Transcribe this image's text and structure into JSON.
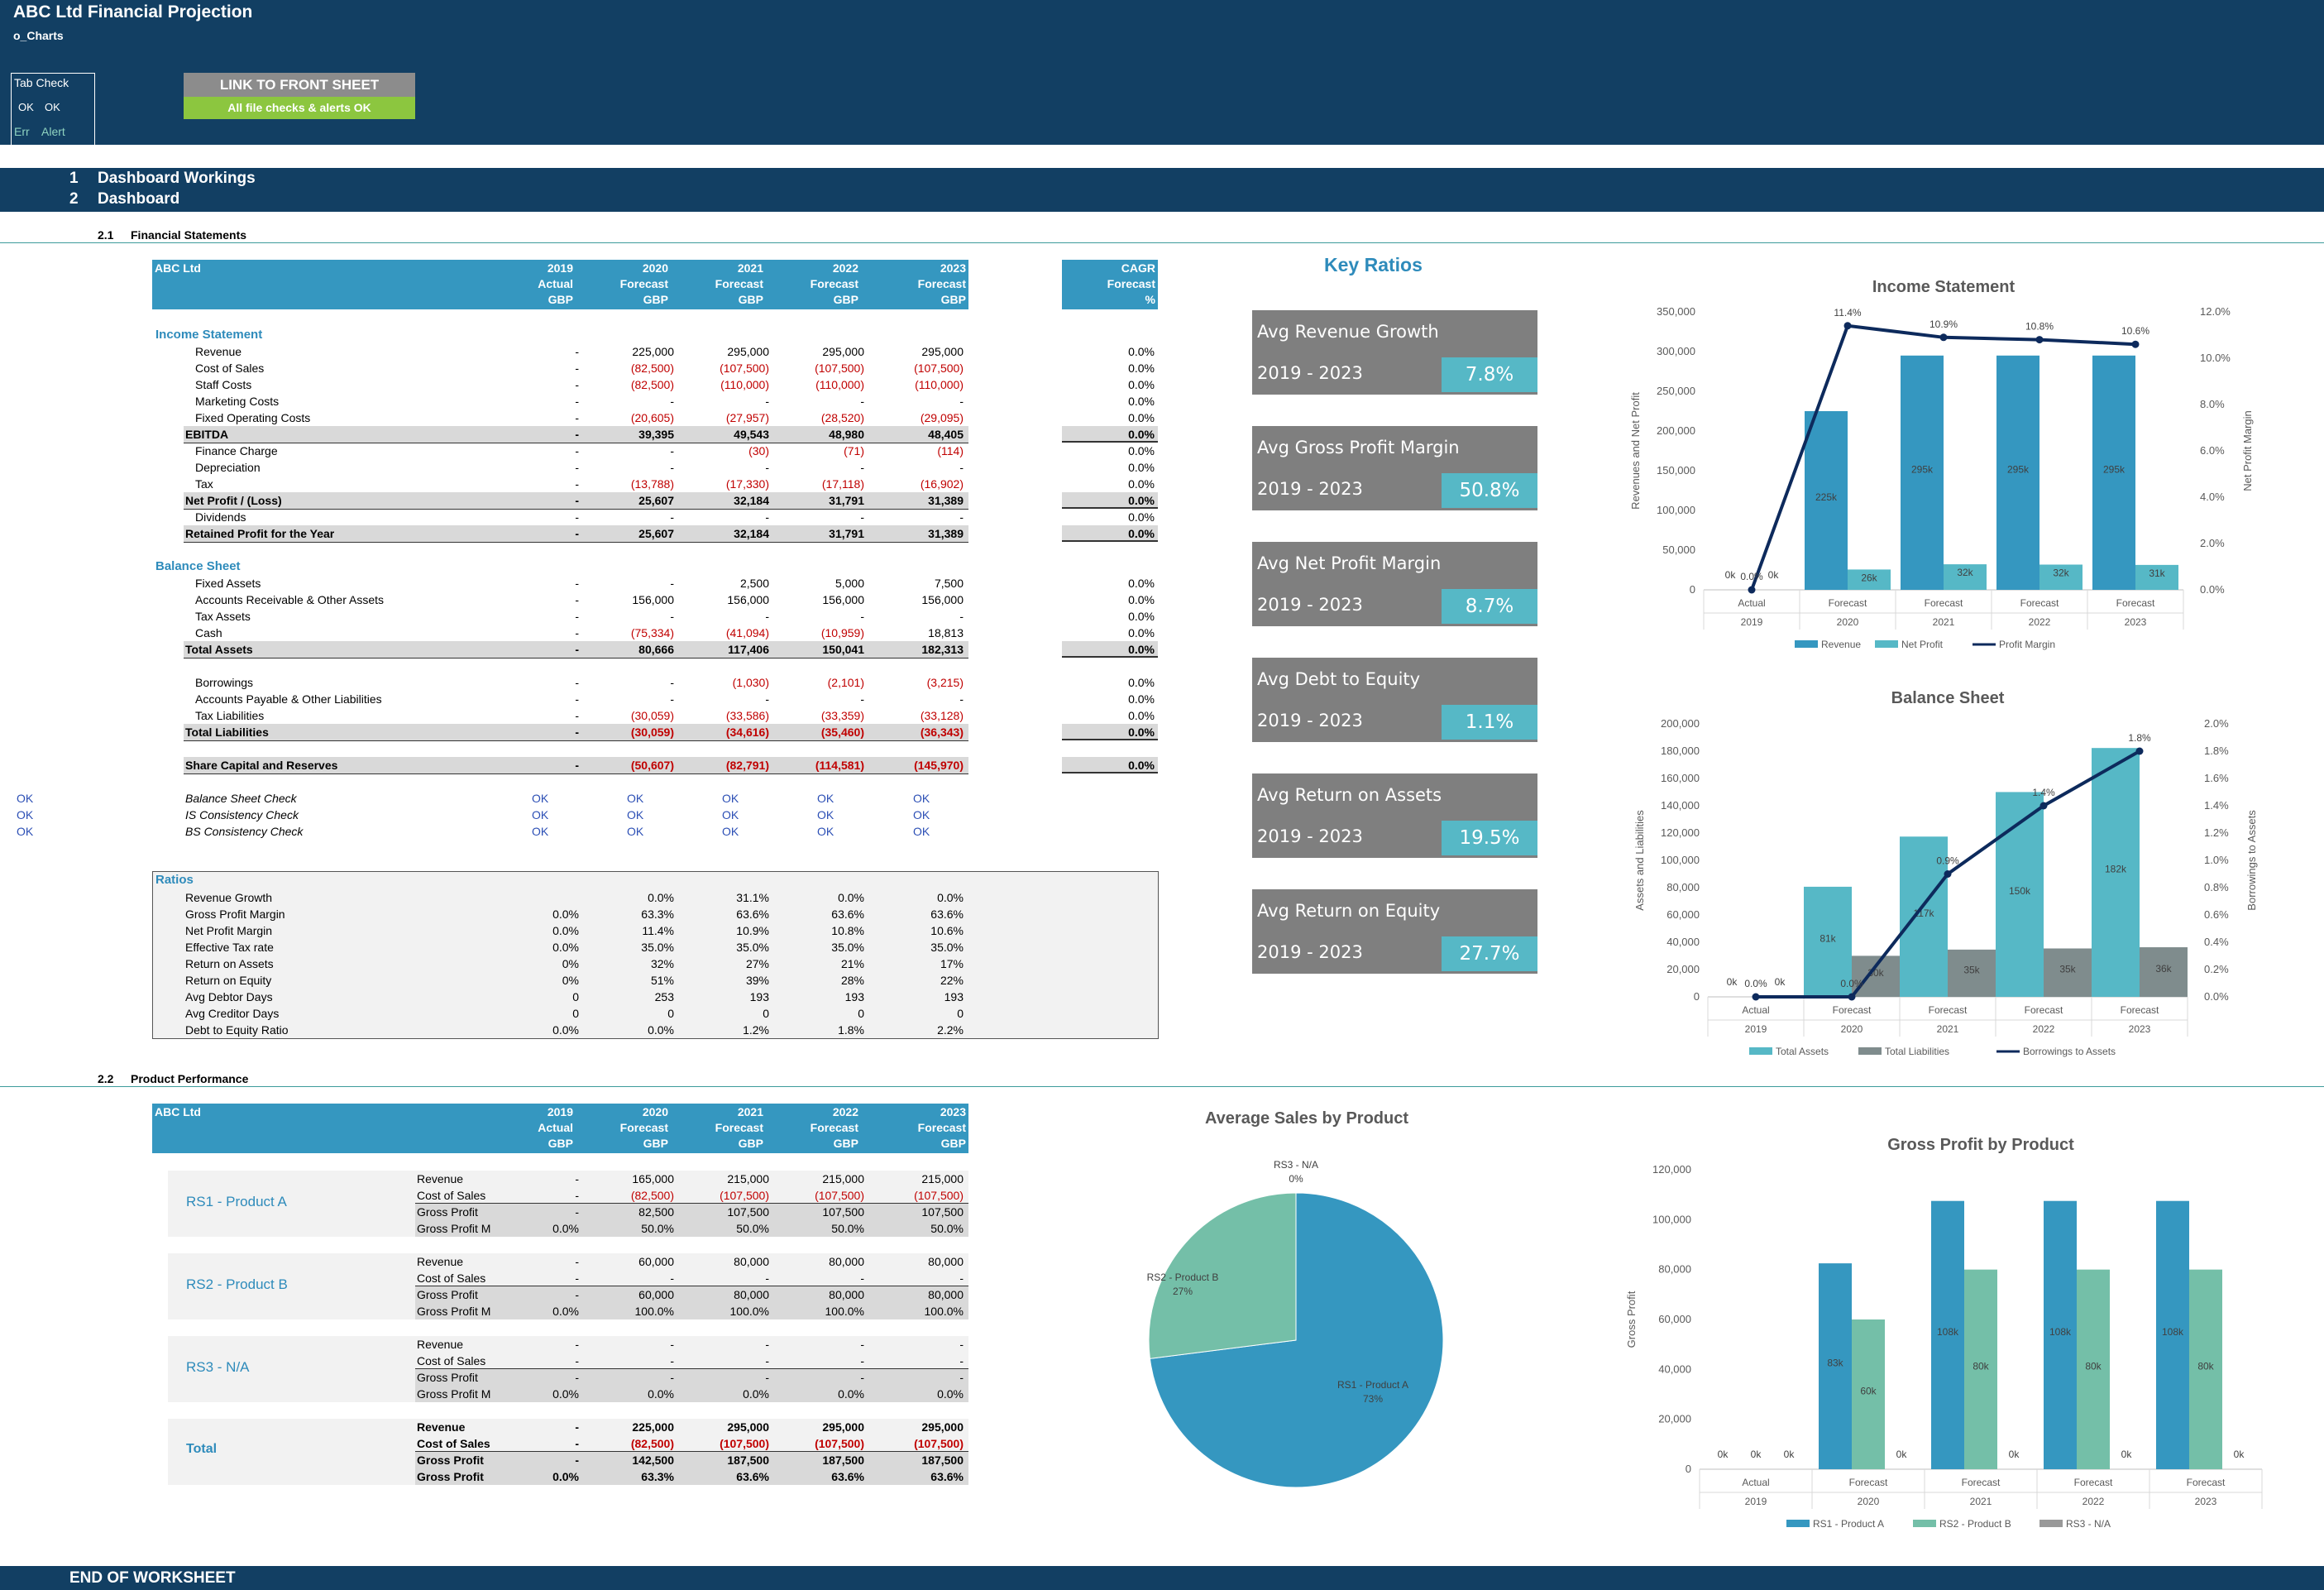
{
  "header": {
    "title": "ABC Ltd Financial Projection",
    "sheet": "o_Charts",
    "tab_check_label": "Tab Check",
    "ok1": "OK",
    "ok2": "OK",
    "err": "Err",
    "alert": "Alert",
    "link_button": "LINK TO FRONT SHEET",
    "checks_status": "All file checks & alerts OK"
  },
  "outline": {
    "s1_num": "1",
    "s1_label": "Dashboard Workings",
    "s2_num": "2",
    "s2_label": "Dashboard",
    "s21_num": "2.1",
    "s21_label": "Financial Statements",
    "s22_num": "2.2",
    "s22_label": "Product Performance",
    "end": "END OF WORKSHEET"
  },
  "fs_header": {
    "company": "ABC Ltd",
    "years": [
      "2019",
      "2020",
      "2021",
      "2022",
      "2023"
    ],
    "types": [
      "Actual",
      "Forecast",
      "Forecast",
      "Forecast",
      "Forecast"
    ],
    "units": [
      "GBP",
      "GBP",
      "GBP",
      "GBP",
      "GBP"
    ],
    "cagr": "CAGR",
    "cagr_type": "Forecast",
    "cagr_unit": "%"
  },
  "income": {
    "title": "Income Statement",
    "rows": [
      {
        "label": "Revenue",
        "v": [
          "-",
          "225,000",
          "295,000",
          "295,000",
          "295,000"
        ],
        "cagr": "0.0%"
      },
      {
        "label": "Cost of Sales",
        "v": [
          "-",
          "(82,500)",
          "(107,500)",
          "(107,500)",
          "(107,500)"
        ],
        "cagr": "0.0%"
      },
      {
        "label": "Staff Costs",
        "v": [
          "-",
          "(82,500)",
          "(110,000)",
          "(110,000)",
          "(110,000)"
        ],
        "cagr": "0.0%"
      },
      {
        "label": "Marketing Costs",
        "v": [
          "-",
          "-",
          "-",
          "-",
          "-"
        ],
        "cagr": "0.0%"
      },
      {
        "label": "Fixed Operating Costs",
        "v": [
          "-",
          "(20,605)",
          "(27,957)",
          "(28,520)",
          "(29,095)"
        ],
        "cagr": "0.0%"
      },
      {
        "label": "EBITDA",
        "v": [
          "-",
          "39,395",
          "49,543",
          "48,980",
          "48,405"
        ],
        "cagr": "0.0%"
      },
      {
        "label": "Finance Charge",
        "v": [
          "-",
          "-",
          "(30)",
          "(71)",
          "(114)"
        ],
        "cagr": "0.0%"
      },
      {
        "label": "Depreciation",
        "v": [
          "-",
          "-",
          "-",
          "-",
          "-"
        ],
        "cagr": "0.0%"
      },
      {
        "label": "Tax",
        "v": [
          "-",
          "(13,788)",
          "(17,330)",
          "(17,118)",
          "(16,902)"
        ],
        "cagr": "0.0%"
      },
      {
        "label": "Net Profit / (Loss)",
        "v": [
          "-",
          "25,607",
          "32,184",
          "31,791",
          "31,389"
        ],
        "cagr": "0.0%"
      },
      {
        "label": "Dividends",
        "v": [
          "-",
          "-",
          "-",
          "-",
          "-"
        ],
        "cagr": "0.0%"
      },
      {
        "label": "Retained Profit for the Year",
        "v": [
          "-",
          "25,607",
          "32,184",
          "31,791",
          "31,389"
        ],
        "cagr": "0.0%"
      }
    ]
  },
  "balance": {
    "title": "Balance Sheet",
    "rows": [
      {
        "label": "Fixed Assets",
        "v": [
          "-",
          "-",
          "2,500",
          "5,000",
          "7,500"
        ],
        "cagr": "0.0%"
      },
      {
        "label": "Accounts Receivable & Other Assets",
        "v": [
          "-",
          "156,000",
          "156,000",
          "156,000",
          "156,000"
        ],
        "cagr": "0.0%"
      },
      {
        "label": "Tax Assets",
        "v": [
          "-",
          "-",
          "-",
          "-",
          "-"
        ],
        "cagr": "0.0%"
      },
      {
        "label": "Cash",
        "v": [
          "-",
          "(75,334)",
          "(41,094)",
          "(10,959)",
          "18,813"
        ],
        "cagr": "0.0%"
      },
      {
        "label": "Total Assets",
        "v": [
          "-",
          "80,666",
          "117,406",
          "150,041",
          "182,313"
        ],
        "cagr": "0.0%"
      },
      {
        "label": "Borrowings",
        "v": [
          "-",
          "-",
          "(1,030)",
          "(2,101)",
          "(3,215)"
        ],
        "cagr": "0.0%"
      },
      {
        "label": "Accounts Payable & Other Liabilities",
        "v": [
          "-",
          "-",
          "-",
          "-",
          "-"
        ],
        "cagr": "0.0%"
      },
      {
        "label": "Tax Liabilities",
        "v": [
          "-",
          "(30,059)",
          "(33,586)",
          "(33,359)",
          "(33,128)"
        ],
        "cagr": "0.0%"
      },
      {
        "label": "Total Liabilities",
        "v": [
          "-",
          "(30,059)",
          "(34,616)",
          "(35,460)",
          "(36,343)"
        ],
        "cagr": "0.0%"
      },
      {
        "label": "Share Capital and Reserves",
        "v": [
          "-",
          "(50,607)",
          "(82,791)",
          "(114,581)",
          "(145,970)"
        ],
        "cagr": "0.0%"
      }
    ]
  },
  "checks": [
    {
      "left": "OK",
      "label": "Balance Sheet Check",
      "v": [
        "OK",
        "OK",
        "OK",
        "OK",
        "OK"
      ]
    },
    {
      "left": "OK",
      "label": "IS Consistency Check",
      "v": [
        "OK",
        "OK",
        "OK",
        "OK",
        "OK"
      ]
    },
    {
      "left": "OK",
      "label": "BS Consistency Check",
      "v": [
        "OK",
        "OK",
        "OK",
        "OK",
        "OK"
      ]
    }
  ],
  "ratios": {
    "title": "Ratios",
    "rows": [
      {
        "label": "Revenue Growth",
        "v": [
          "",
          "0.0%",
          "31.1%",
          "0.0%",
          "0.0%"
        ]
      },
      {
        "label": "Gross Profit Margin",
        "v": [
          "0.0%",
          "63.3%",
          "63.6%",
          "63.6%",
          "63.6%"
        ]
      },
      {
        "label": "Net Profit Margin",
        "v": [
          "0.0%",
          "11.4%",
          "10.9%",
          "10.8%",
          "10.6%"
        ]
      },
      {
        "label": "Effective Tax rate",
        "v": [
          "0.0%",
          "35.0%",
          "35.0%",
          "35.0%",
          "35.0%"
        ]
      },
      {
        "label": "Return on Assets",
        "v": [
          "0%",
          "32%",
          "27%",
          "21%",
          "17%"
        ]
      },
      {
        "label": "Return on Equity",
        "v": [
          "0%",
          "51%",
          "39%",
          "28%",
          "22%"
        ]
      },
      {
        "label": "Avg Debtor Days",
        "v": [
          "0",
          "253",
          "193",
          "193",
          "193"
        ]
      },
      {
        "label": "Avg Creditor Days",
        "v": [
          "0",
          "0",
          "0",
          "0",
          "0"
        ]
      },
      {
        "label": "Debt to Equity Ratio",
        "v": [
          "0.0%",
          "0.0%",
          "1.2%",
          "1.8%",
          "2.2%"
        ]
      }
    ]
  },
  "key_ratios": {
    "title": "Key Ratios",
    "items": [
      {
        "label": "Avg Revenue Growth",
        "period": "2019 - 2023",
        "value": "7.8%"
      },
      {
        "label": "Avg Gross Profit Margin",
        "period": "2019 - 2023",
        "value": "50.8%"
      },
      {
        "label": "Avg Net Profit Margin",
        "period": "2019 - 2023",
        "value": "8.7%"
      },
      {
        "label": "Avg Debt to Equity",
        "period": "2019 - 2023",
        "value": "1.1%"
      },
      {
        "label": "Avg Return on Assets",
        "period": "2019 - 2023",
        "value": "19.5%"
      },
      {
        "label": "Avg Return on Equity",
        "period": "2019 - 2023",
        "value": "27.7%"
      }
    ]
  },
  "products": [
    {
      "name": "RS1 - Product A",
      "rows": [
        {
          "label": "Revenue",
          "v": [
            "-",
            "165,000",
            "215,000",
            "215,000",
            "215,000"
          ]
        },
        {
          "label": "Cost of Sales",
          "v": [
            "-",
            "(82,500)",
            "(107,500)",
            "(107,500)",
            "(107,500)"
          ]
        },
        {
          "label": "Gross Profit",
          "v": [
            "-",
            "82,500",
            "107,500",
            "107,500",
            "107,500"
          ]
        },
        {
          "label": "Gross Profit M",
          "v": [
            "0.0%",
            "50.0%",
            "50.0%",
            "50.0%",
            "50.0%"
          ]
        }
      ]
    },
    {
      "name": "RS2 - Product B",
      "rows": [
        {
          "label": "Revenue",
          "v": [
            "-",
            "60,000",
            "80,000",
            "80,000",
            "80,000"
          ]
        },
        {
          "label": "Cost of Sales",
          "v": [
            "-",
            "-",
            "-",
            "-",
            "-"
          ]
        },
        {
          "label": "Gross Profit",
          "v": [
            "-",
            "60,000",
            "80,000",
            "80,000",
            "80,000"
          ]
        },
        {
          "label": "Gross Profit M",
          "v": [
            "0.0%",
            "100.0%",
            "100.0%",
            "100.0%",
            "100.0%"
          ]
        }
      ]
    },
    {
      "name": "RS3 - N/A",
      "rows": [
        {
          "label": "Revenue",
          "v": [
            "-",
            "-",
            "-",
            "-",
            "-"
          ]
        },
        {
          "label": "Cost of Sales",
          "v": [
            "-",
            "-",
            "-",
            "-",
            "-"
          ]
        },
        {
          "label": "Gross Profit",
          "v": [
            "-",
            "-",
            "-",
            "-",
            "-"
          ]
        },
        {
          "label": "Gross Profit M",
          "v": [
            "0.0%",
            "0.0%",
            "0.0%",
            "0.0%",
            "0.0%"
          ]
        }
      ]
    },
    {
      "name": "Total",
      "rows": [
        {
          "label": "Revenue",
          "v": [
            "-",
            "225,000",
            "295,000",
            "295,000",
            "295,000"
          ]
        },
        {
          "label": "Cost of Sales",
          "v": [
            "-",
            "(82,500)",
            "(107,500)",
            "(107,500)",
            "(107,500)"
          ]
        },
        {
          "label": "Gross Profit",
          "v": [
            "-",
            "142,500",
            "187,500",
            "187,500",
            "187,500"
          ]
        },
        {
          "label": "Gross Profit",
          "v": [
            "0.0%",
            "63.3%",
            "63.6%",
            "63.6%",
            "63.6%"
          ]
        }
      ]
    }
  ],
  "chart_data": [
    {
      "type": "bar",
      "title": "Income Statement",
      "ylabel": "Revenues and Net Profit",
      "y2label": "Net Profit Margin",
      "categories": [
        "Actual 2019",
        "Forecast 2020",
        "Forecast 2021",
        "Forecast 2022",
        "Forecast 2023"
      ],
      "cat_top": [
        "Actual",
        "Forecast",
        "Forecast",
        "Forecast",
        "Forecast"
      ],
      "cat_bottom": [
        "2019",
        "2020",
        "2021",
        "2022",
        "2023"
      ],
      "ylim": [
        0,
        350000
      ],
      "yticks": [
        "0",
        "50,000",
        "100,000",
        "150,000",
        "200,000",
        "250,000",
        "300,000",
        "350,000"
      ],
      "y2lim": [
        0,
        12
      ],
      "y2ticks": [
        "0.0%",
        "2.0%",
        "4.0%",
        "6.0%",
        "8.0%",
        "10.0%",
        "12.0%"
      ],
      "series": [
        {
          "name": "Revenue",
          "values": [
            0,
            225000,
            295000,
            295000,
            295000
          ],
          "labels": [
            "0k",
            "225k",
            "295k",
            "295k",
            "295k"
          ],
          "color": "#3597c0"
        },
        {
          "name": "Net Profit",
          "values": [
            0,
            25607,
            32184,
            31791,
            31389
          ],
          "labels": [
            "0k",
            "26k",
            "32k",
            "32k",
            "31k"
          ],
          "color": "#56b8c6"
        },
        {
          "name": "Profit Margin",
          "type": "line",
          "axis": "right",
          "values": [
            0,
            11.4,
            10.9,
            10.8,
            10.6
          ],
          "labels": [
            "0.0%",
            "11.4%",
            "10.9%",
            "10.8%",
            "10.6%"
          ],
          "color": "#0d2a5c"
        }
      ],
      "legend": "bottom"
    },
    {
      "type": "bar",
      "title": "Balance Sheet",
      "ylabel": "Assets and Liabilities",
      "y2label": "Borrowings to Assets",
      "categories": [
        "Actual 2019",
        "Forecast 2020",
        "Forecast 2021",
        "Forecast 2022",
        "Forecast 2023"
      ],
      "cat_top": [
        "Actual",
        "Forecast",
        "Forecast",
        "Forecast",
        "Forecast"
      ],
      "cat_bottom": [
        "2019",
        "2020",
        "2021",
        "2022",
        "2023"
      ],
      "ylim": [
        0,
        200000
      ],
      "yticks": [
        "0",
        "20,000",
        "40,000",
        "60,000",
        "80,000",
        "100,000",
        "120,000",
        "140,000",
        "160,000",
        "180,000",
        "200,000"
      ],
      "y2lim": [
        0,
        2
      ],
      "y2ticks": [
        "0.0%",
        "0.2%",
        "0.4%",
        "0.6%",
        "0.8%",
        "1.0%",
        "1.2%",
        "1.4%",
        "1.6%",
        "1.8%",
        "2.0%"
      ],
      "series": [
        {
          "name": "Total Assets",
          "values": [
            0,
            80666,
            117406,
            150041,
            182313
          ],
          "labels": [
            "0k",
            "81k",
            "117k",
            "150k",
            "182k"
          ],
          "color": "#56b8c6"
        },
        {
          "name": "Total Liabilities",
          "values": [
            0,
            30059,
            34616,
            35460,
            36343
          ],
          "labels": [
            "0k",
            "30k",
            "35k",
            "35k",
            "36k"
          ],
          "color": "#7f8c8d"
        },
        {
          "name": "Borrowings to Assets",
          "type": "line",
          "axis": "right",
          "values": [
            0,
            0,
            0.9,
            1.4,
            1.8
          ],
          "labels": [
            "0.0%",
            "0.0%",
            "0.9%",
            "1.4%",
            "1.8%"
          ],
          "color": "#0d2a5c"
        }
      ],
      "legend": "bottom"
    },
    {
      "type": "pie",
      "title": "Average Sales by Product",
      "slices": [
        {
          "name": "RS1 - Product A",
          "value": 73,
          "label": "73%",
          "color": "#3597c0"
        },
        {
          "name": "RS2 - Product B",
          "value": 27,
          "label": "27%",
          "color": "#74bfa8"
        },
        {
          "name": "RS3 - N/A",
          "value": 0,
          "label": "0%",
          "color": "#999999"
        }
      ]
    },
    {
      "type": "bar",
      "title": "Gross Profit by Product",
      "ylabel": "Gross Profit",
      "categories": [
        "Actual 2019",
        "Forecast 2020",
        "Forecast 2021",
        "Forecast 2022",
        "Forecast 2023"
      ],
      "cat_top": [
        "Actual",
        "Forecast",
        "Forecast",
        "Forecast",
        "Forecast"
      ],
      "cat_bottom": [
        "2019",
        "2020",
        "2021",
        "2022",
        "2023"
      ],
      "ylim": [
        0,
        120000
      ],
      "yticks": [
        "0",
        "20,000",
        "40,000",
        "60,000",
        "80,000",
        "100,000",
        "120,000"
      ],
      "series": [
        {
          "name": "RS1 - Product A",
          "values": [
            0,
            82500,
            107500,
            107500,
            107500
          ],
          "labels": [
            "0k",
            "83k",
            "108k",
            "108k",
            "108k"
          ],
          "color": "#3597c0"
        },
        {
          "name": "RS2 - Product B",
          "values": [
            0,
            60000,
            80000,
            80000,
            80000
          ],
          "labels": [
            "0k",
            "60k",
            "80k",
            "80k",
            "80k"
          ],
          "color": "#74bfa8"
        },
        {
          "name": "RS3 - N/A",
          "values": [
            0,
            0,
            0,
            0,
            0
          ],
          "labels": [
            "0k",
            "0k",
            "0k",
            "0k",
            "0k"
          ],
          "color": "#999999"
        }
      ],
      "legend": "bottom"
    }
  ]
}
